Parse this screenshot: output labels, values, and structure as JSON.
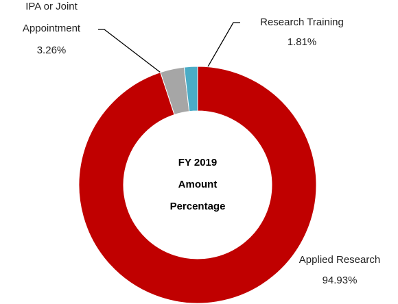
{
  "chart_data": {
    "type": "donut",
    "center_text": [
      "FY 2019",
      "Amount",
      "Percentage"
    ],
    "categories": [
      "Applied Research",
      "IPA or Joint Appointment",
      "Research Training"
    ],
    "values": [
      94.93,
      3.26,
      1.81
    ],
    "value_labels": [
      "94.93%",
      "3.26%",
      "1.81%"
    ],
    "colors": [
      "#c00000",
      "#a6a6a6",
      "#4bacc6"
    ]
  }
}
